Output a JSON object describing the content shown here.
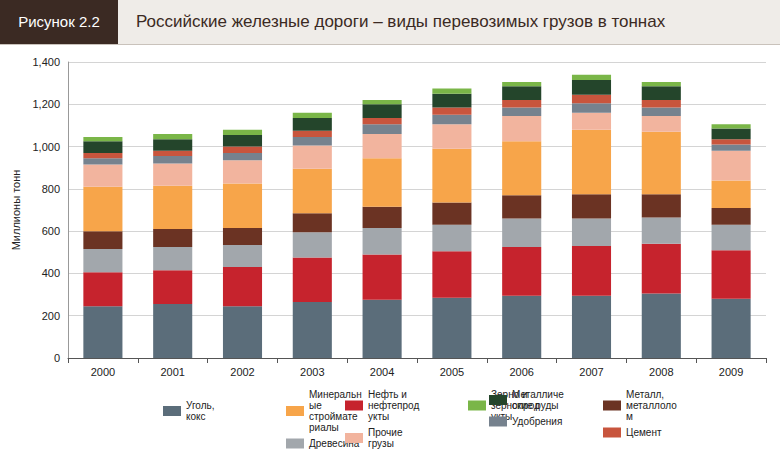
{
  "chart_data": {
    "type": "bar",
    "title": "Российские железные дороги – виды перевозимых грузов в тоннах",
    "annotation": "Рисунок 2.2",
    "y_label": "Миллионы тонн",
    "stacked": true,
    "grid": true,
    "legend": "bottom",
    "categories": [
      "2000",
      "2001",
      "2002",
      "2003",
      "2004",
      "2005",
      "2006",
      "2007",
      "2008",
      "2009"
    ],
    "ylim": [
      0,
      1400
    ],
    "yticks": [
      0,
      200,
      400,
      600,
      800,
      {
        "value": 1000,
        "label": "1,000"
      },
      {
        "value": 1200,
        "label": "1,200"
      },
      {
        "value": 1400,
        "label": "1,400"
      }
    ],
    "series": [
      {
        "name": "Уголь, кокс",
        "color": "#5b6d7a",
        "values": [
          245,
          255,
          245,
          265,
          275,
          285,
          295,
          295,
          305,
          280
        ]
      },
      {
        "name": "Нефть и нефтепродукты",
        "color": "#c6232d",
        "values": [
          160,
          160,
          185,
          210,
          215,
          220,
          230,
          235,
          235,
          230
        ]
      },
      {
        "name": "Древесина",
        "color": "#a2a7ac",
        "values": [
          110,
          110,
          105,
          120,
          125,
          125,
          135,
          130,
          125,
          120
        ]
      },
      {
        "name": "Металл, металлолом",
        "color": "#6b3323",
        "values": [
          85,
          85,
          80,
          90,
          100,
          105,
          110,
          115,
          110,
          80
        ]
      },
      {
        "name": "Минеральные стройматериалы",
        "color": "#f7a54a",
        "values": [
          210,
          205,
          210,
          210,
          230,
          255,
          255,
          305,
          295,
          130
        ]
      },
      {
        "name": "Прочие грузы",
        "color": "#f2b49e",
        "values": [
          105,
          105,
          110,
          110,
          115,
          115,
          120,
          80,
          75,
          140
        ]
      },
      {
        "name": "Удобрения",
        "color": "#76828e",
        "values": [
          30,
          35,
          35,
          40,
          45,
          45,
          40,
          45,
          40,
          30
        ]
      },
      {
        "name": "Цемент",
        "color": "#c8553d",
        "values": [
          25,
          25,
          30,
          30,
          30,
          35,
          35,
          40,
          35,
          25
        ]
      },
      {
        "name": "Металлические руды",
        "color": "#24452b",
        "values": [
          55,
          55,
          55,
          60,
          65,
          65,
          65,
          70,
          65,
          50
        ]
      },
      {
        "name": "Зерно и зернопродукты",
        "color": "#7ab648",
        "values": [
          20,
          25,
          25,
          25,
          20,
          25,
          20,
          25,
          20,
          20
        ]
      }
    ]
  }
}
